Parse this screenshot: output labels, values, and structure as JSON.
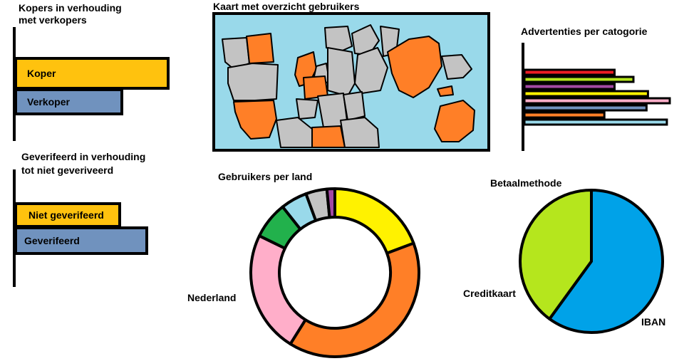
{
  "colors": {
    "gold": "#FFC20E",
    "steel": "#7092BE",
    "water": "#99D9EA",
    "land_gray": "#C3C3C3",
    "land_orange": "#FF7F27",
    "red": "#ED1C24",
    "lime": "#B5E61D",
    "purple": "#A349A4",
    "yellow": "#FFF200",
    "pink": "#FFAEC9",
    "light_blue": "#99D9EA",
    "sky": "#00A2E8",
    "green": "#22B14C"
  },
  "panel_buyers": {
    "title_line1": "Kopers in verhouding",
    "title_line2": "met verkopers"
  },
  "panel_verified": {
    "title_line1": "Geverifeerd in verhouding",
    "title_line2": "tot niet geveriveerd"
  },
  "panel_map": {
    "title": "Kaart met overzicht gebruikers",
    "icon": "world-map"
  },
  "panel_ads": {
    "title": "Advertenties per catogorie"
  },
  "panel_countries": {
    "title": "Gebruikers per land"
  },
  "panel_payment": {
    "title": "Betaalmethode"
  },
  "chart_data": [
    {
      "type": "bar",
      "orientation": "horizontal",
      "title": "Kopers in verhouding met verkopers",
      "categories": [
        "Koper",
        "Verkoper"
      ],
      "values": [
        100,
        70
      ],
      "colors": [
        "#FFC20E",
        "#7092BE"
      ]
    },
    {
      "type": "bar",
      "orientation": "horizontal",
      "title": "Geverifeerd in verhouding tot niet geveriveerd",
      "categories": [
        "Niet geverifeerd",
        "Geverifeerd"
      ],
      "values": [
        80,
        100
      ],
      "colors": [
        "#FFC20E",
        "#7092BE"
      ]
    },
    {
      "type": "bar",
      "orientation": "horizontal",
      "title": "Advertenties per catogorie",
      "values": [
        62,
        75,
        62,
        85,
        100,
        84,
        55,
        98
      ],
      "colors": [
        "#ED1C24",
        "#B5E61D",
        "#A349A4",
        "#FFF200",
        "#FFAEC9",
        "#7092BE",
        "#FF7F27",
        "#99D9EA"
      ]
    },
    {
      "type": "pie",
      "style": "donut",
      "title": "Gebruikers per land",
      "slices": [
        {
          "label": "",
          "value": 19,
          "color": "#FFF200"
        },
        {
          "label": "",
          "value": 39,
          "color": "#FF7F27"
        },
        {
          "label": "Nederland",
          "value": 23,
          "color": "#FFAEC9"
        },
        {
          "label": "",
          "value": 7,
          "color": "#22B14C"
        },
        {
          "label": "",
          "value": 5,
          "color": "#99D9EA"
        },
        {
          "label": "",
          "value": 4,
          "color": "#C3C3C3"
        },
        {
          "label": "",
          "value": 1.5,
          "color": "#A349A4"
        }
      ]
    },
    {
      "type": "pie",
      "title": "Betaalmethode",
      "slices": [
        {
          "label": "IBAN",
          "value": 60,
          "color": "#00A2E8"
        },
        {
          "label": "Creditkaart",
          "value": 40,
          "color": "#B5E61D"
        }
      ]
    }
  ]
}
